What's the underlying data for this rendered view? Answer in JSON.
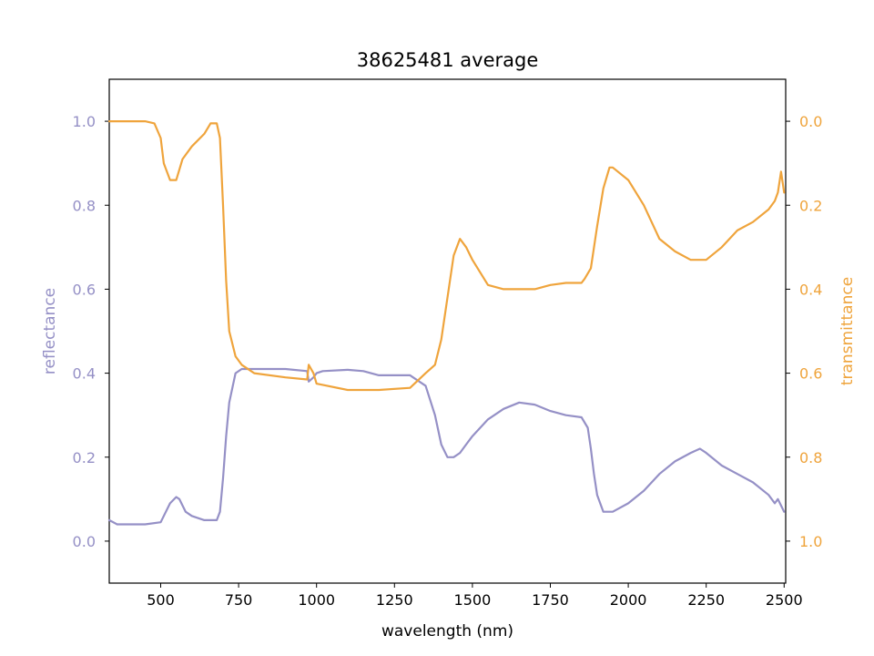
{
  "chart_data": {
    "type": "line",
    "title": "38625481 average",
    "xlabel": "wavelength (nm)",
    "ylabel_left": "reflectance",
    "ylabel_right": "transmittance",
    "xlim": [
      335,
      2505
    ],
    "ylim_left": [
      -0.1,
      1.1
    ],
    "ylim_right": [
      1.1,
      -0.1
    ],
    "right_axis_inverted": true,
    "grid": false,
    "x_ticks": [
      500,
      750,
      1000,
      1250,
      1500,
      1750,
      2000,
      2250,
      2500
    ],
    "x_tick_labels": [
      "500",
      "750",
      "1000",
      "1250",
      "1500",
      "1750",
      "2000",
      "2250",
      "2500"
    ],
    "left_ticks": [
      0.0,
      0.2,
      0.4,
      0.6,
      0.8,
      1.0
    ],
    "left_tick_labels": [
      "0.0",
      "0.2",
      "0.4",
      "0.6",
      "0.8",
      "1.0"
    ],
    "right_ticks": [
      0.0,
      0.2,
      0.4,
      0.6,
      0.8,
      1.0
    ],
    "right_tick_labels": [
      "0.0",
      "0.2",
      "0.4",
      "0.6",
      "0.8",
      "1.0"
    ],
    "colors": {
      "reflectance": "#9590c6",
      "transmittance": "#efa43c"
    },
    "series": [
      {
        "axis": "left",
        "x": [
          335,
          360,
          400,
          450,
          500,
          510,
          530,
          550,
          560,
          580,
          600,
          640,
          680,
          690,
          700,
          710,
          720,
          740,
          760,
          780,
          800,
          900,
          970,
          975,
          990,
          1000,
          1020,
          1100,
          1150,
          1200,
          1300,
          1350,
          1380,
          1400,
          1420,
          1440,
          1460,
          1480,
          1500,
          1550,
          1600,
          1650,
          1700,
          1750,
          1800,
          1850,
          1870,
          1880,
          1890,
          1900,
          1920,
          1950,
          2000,
          2050,
          2100,
          2150,
          2200,
          2230,
          2250,
          2300,
          2350,
          2400,
          2450,
          2470,
          2480,
          2500
        ],
        "y": [
          0.05,
          0.04,
          0.04,
          0.04,
          0.045,
          0.06,
          0.09,
          0.105,
          0.1,
          0.07,
          0.06,
          0.05,
          0.05,
          0.07,
          0.15,
          0.25,
          0.33,
          0.4,
          0.41,
          0.41,
          0.41,
          0.41,
          0.405,
          0.38,
          0.39,
          0.4,
          0.405,
          0.408,
          0.405,
          0.395,
          0.395,
          0.37,
          0.3,
          0.23,
          0.2,
          0.2,
          0.21,
          0.23,
          0.25,
          0.29,
          0.315,
          0.33,
          0.325,
          0.31,
          0.3,
          0.295,
          0.27,
          0.22,
          0.16,
          0.11,
          0.07,
          0.07,
          0.09,
          0.12,
          0.16,
          0.19,
          0.21,
          0.22,
          0.21,
          0.18,
          0.16,
          0.14,
          0.11,
          0.09,
          0.1,
          0.07
        ]
      },
      {
        "axis": "right",
        "x": [
          335,
          350,
          400,
          450,
          480,
          500,
          510,
          530,
          550,
          570,
          600,
          640,
          660,
          680,
          690,
          700,
          710,
          720,
          740,
          760,
          800,
          900,
          970,
          975,
          990,
          1000,
          1100,
          1150,
          1200,
          1300,
          1350,
          1380,
          1400,
          1420,
          1440,
          1460,
          1480,
          1500,
          1550,
          1600,
          1650,
          1700,
          1750,
          1800,
          1850,
          1860,
          1880,
          1900,
          1920,
          1940,
          1950,
          2000,
          2050,
          2100,
          2150,
          2200,
          2230,
          2250,
          2300,
          2350,
          2400,
          2450,
          2470,
          2480,
          2490,
          2500
        ],
        "y": [
          0.0,
          0.0,
          0.0,
          0.0,
          0.005,
          0.04,
          0.1,
          0.14,
          0.14,
          0.09,
          0.06,
          0.03,
          0.005,
          0.005,
          0.04,
          0.2,
          0.38,
          0.5,
          0.56,
          0.58,
          0.6,
          0.61,
          0.615,
          0.58,
          0.6,
          0.625,
          0.64,
          0.64,
          0.64,
          0.635,
          0.6,
          0.58,
          0.52,
          0.42,
          0.32,
          0.28,
          0.3,
          0.33,
          0.39,
          0.4,
          0.4,
          0.4,
          0.39,
          0.385,
          0.385,
          0.375,
          0.35,
          0.25,
          0.16,
          0.11,
          0.11,
          0.14,
          0.2,
          0.28,
          0.31,
          0.33,
          0.33,
          0.33,
          0.3,
          0.26,
          0.24,
          0.21,
          0.19,
          0.17,
          0.12,
          0.17
        ]
      }
    ]
  }
}
